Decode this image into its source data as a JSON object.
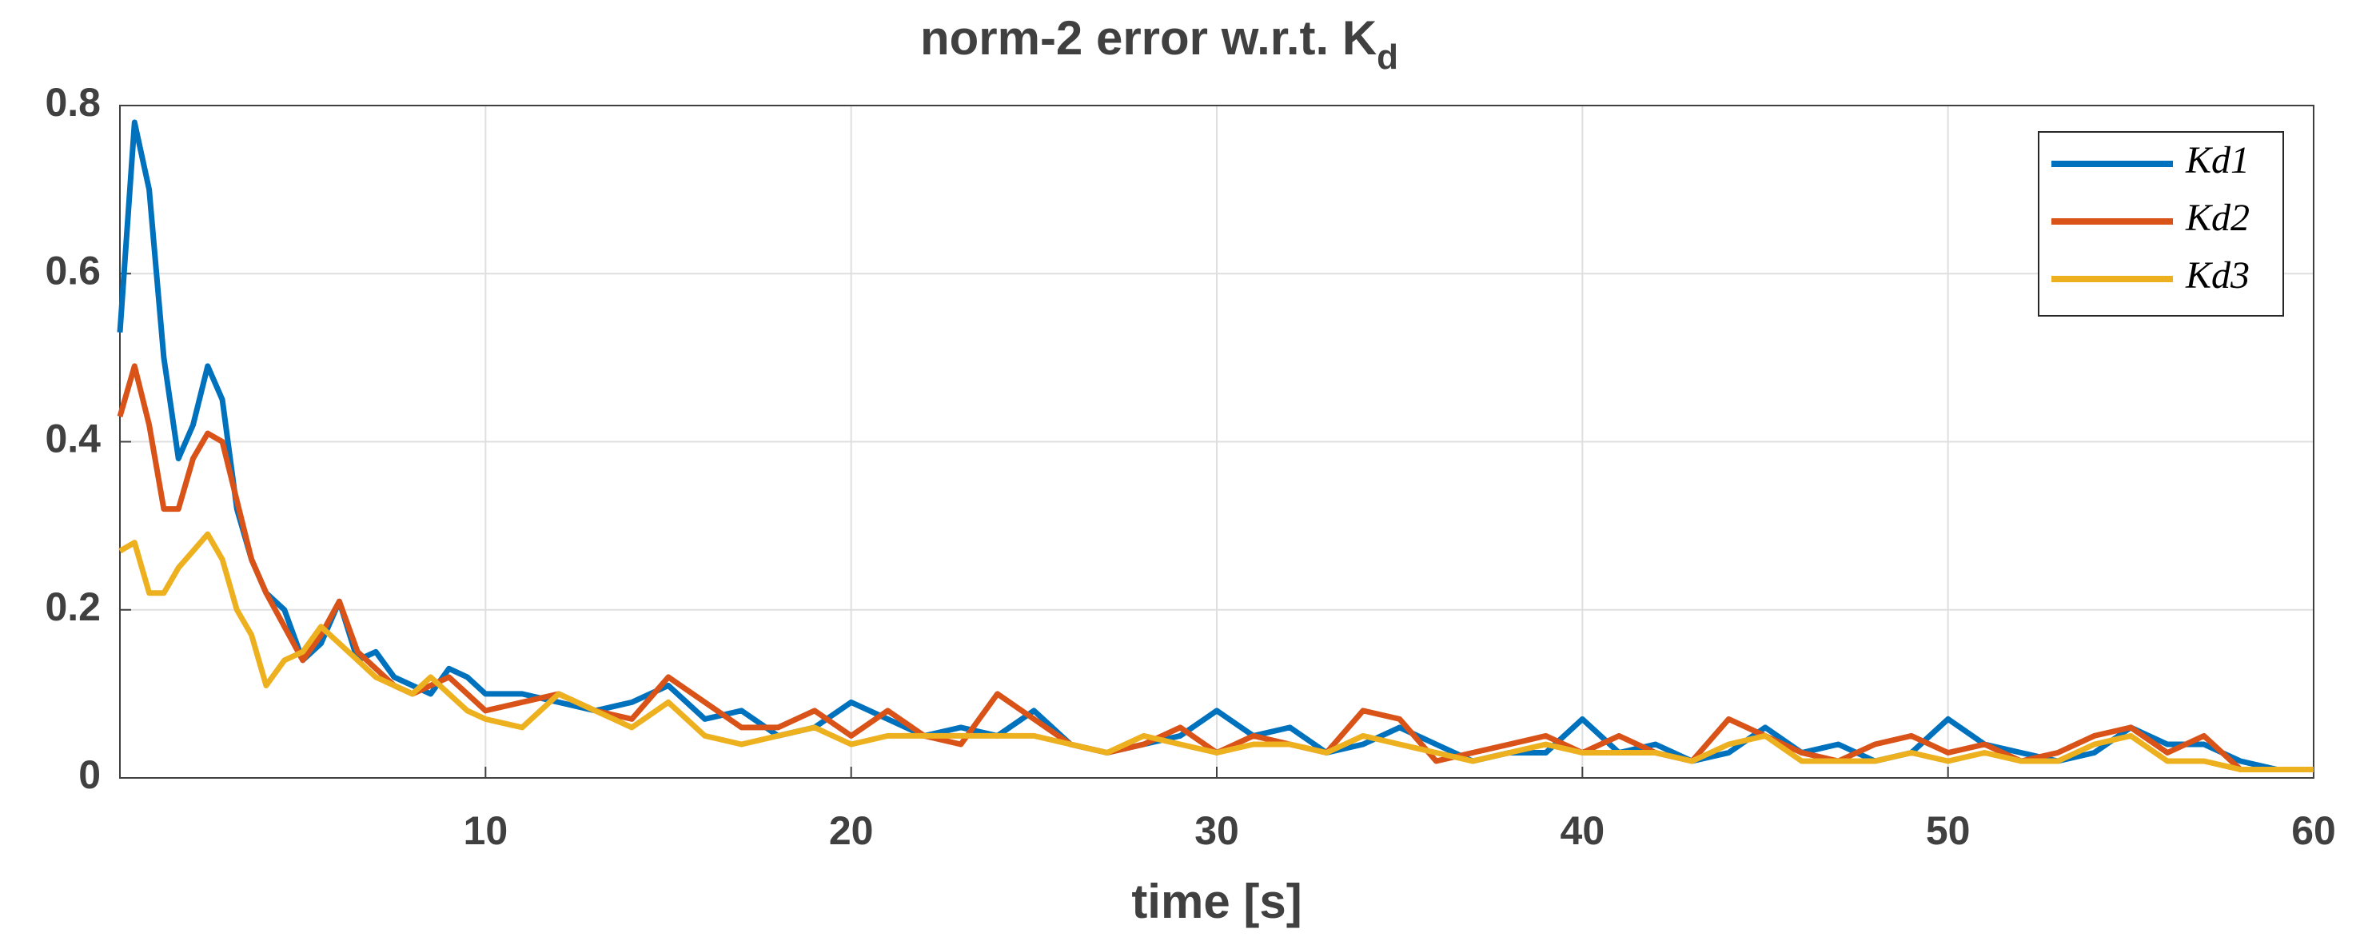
{
  "chart_data": {
    "type": "line",
    "title": "norm-2 error w.r.t. K",
    "title_subscript": "d",
    "x_label": "time [s]",
    "x": [
      0,
      0.4,
      0.8,
      1.2,
      1.6,
      2.0,
      2.4,
      2.8,
      3.2,
      3.6,
      4.0,
      4.5,
      5,
      5.5,
      6,
      6.5,
      7,
      7.5,
      8,
      8.5,
      9,
      9.5,
      10,
      11,
      12,
      13,
      14,
      15,
      16,
      17,
      18,
      19,
      20,
      21,
      22,
      23,
      24,
      25,
      26,
      27,
      28,
      29,
      30,
      31,
      32,
      33,
      34,
      35,
      36,
      37,
      38,
      39,
      40,
      41,
      42,
      43,
      44,
      45,
      46,
      47,
      48,
      49,
      50,
      51,
      52,
      53,
      54,
      55,
      56,
      57,
      58,
      59,
      60
    ],
    "series": [
      {
        "name": "Kd1",
        "color": "#0072bd",
        "values": [
          0.53,
          0.78,
          0.7,
          0.5,
          0.38,
          0.42,
          0.49,
          0.45,
          0.32,
          0.26,
          0.22,
          0.2,
          0.14,
          0.16,
          0.21,
          0.14,
          0.15,
          0.12,
          0.11,
          0.1,
          0.13,
          0.12,
          0.1,
          0.1,
          0.09,
          0.08,
          0.09,
          0.11,
          0.07,
          0.08,
          0.05,
          0.06,
          0.09,
          0.07,
          0.05,
          0.06,
          0.05,
          0.08,
          0.04,
          0.03,
          0.04,
          0.05,
          0.08,
          0.05,
          0.06,
          0.03,
          0.04,
          0.06,
          0.04,
          0.02,
          0.03,
          0.03,
          0.07,
          0.03,
          0.04,
          0.02,
          0.03,
          0.06,
          0.03,
          0.04,
          0.02,
          0.03,
          0.07,
          0.04,
          0.03,
          0.02,
          0.03,
          0.06,
          0.04,
          0.04,
          0.02,
          0.01,
          0.01
        ]
      },
      {
        "name": "Kd2",
        "color": "#d95319",
        "values": [
          0.43,
          0.49,
          0.42,
          0.32,
          0.32,
          0.38,
          0.41,
          0.4,
          0.33,
          0.26,
          0.22,
          0.18,
          0.14,
          0.17,
          0.21,
          0.15,
          0.13,
          0.11,
          0.1,
          0.11,
          0.12,
          0.1,
          0.08,
          0.09,
          0.1,
          0.08,
          0.07,
          0.12,
          0.09,
          0.06,
          0.06,
          0.08,
          0.05,
          0.08,
          0.05,
          0.04,
          0.1,
          0.07,
          0.04,
          0.03,
          0.04,
          0.06,
          0.03,
          0.05,
          0.04,
          0.03,
          0.08,
          0.07,
          0.02,
          0.03,
          0.04,
          0.05,
          0.03,
          0.05,
          0.03,
          0.02,
          0.07,
          0.05,
          0.03,
          0.02,
          0.04,
          0.05,
          0.03,
          0.04,
          0.02,
          0.03,
          0.05,
          0.06,
          0.03,
          0.05,
          0.01,
          0.01,
          0.01
        ]
      },
      {
        "name": "Kd3",
        "color": "#edb120",
        "values": [
          0.27,
          0.28,
          0.22,
          0.22,
          0.25,
          0.27,
          0.29,
          0.26,
          0.2,
          0.17,
          0.11,
          0.14,
          0.15,
          0.18,
          0.16,
          0.14,
          0.12,
          0.11,
          0.1,
          0.12,
          0.1,
          0.08,
          0.07,
          0.06,
          0.1,
          0.08,
          0.06,
          0.09,
          0.05,
          0.04,
          0.05,
          0.06,
          0.04,
          0.05,
          0.05,
          0.05,
          0.05,
          0.05,
          0.04,
          0.03,
          0.05,
          0.04,
          0.03,
          0.04,
          0.04,
          0.03,
          0.05,
          0.04,
          0.03,
          0.02,
          0.03,
          0.04,
          0.03,
          0.03,
          0.03,
          0.02,
          0.04,
          0.05,
          0.02,
          0.02,
          0.02,
          0.03,
          0.02,
          0.03,
          0.02,
          0.02,
          0.04,
          0.05,
          0.02,
          0.02,
          0.01,
          0.01,
          0.01
        ]
      }
    ],
    "xlim": [
      0,
      60
    ],
    "xticks": [
      10,
      20,
      30,
      40,
      50,
      60
    ],
    "ylim": [
      0,
      0.8
    ],
    "yticks": [
      0,
      0.2,
      0.4,
      0.6,
      0.8
    ],
    "grid": true,
    "legend": "top-right"
  }
}
